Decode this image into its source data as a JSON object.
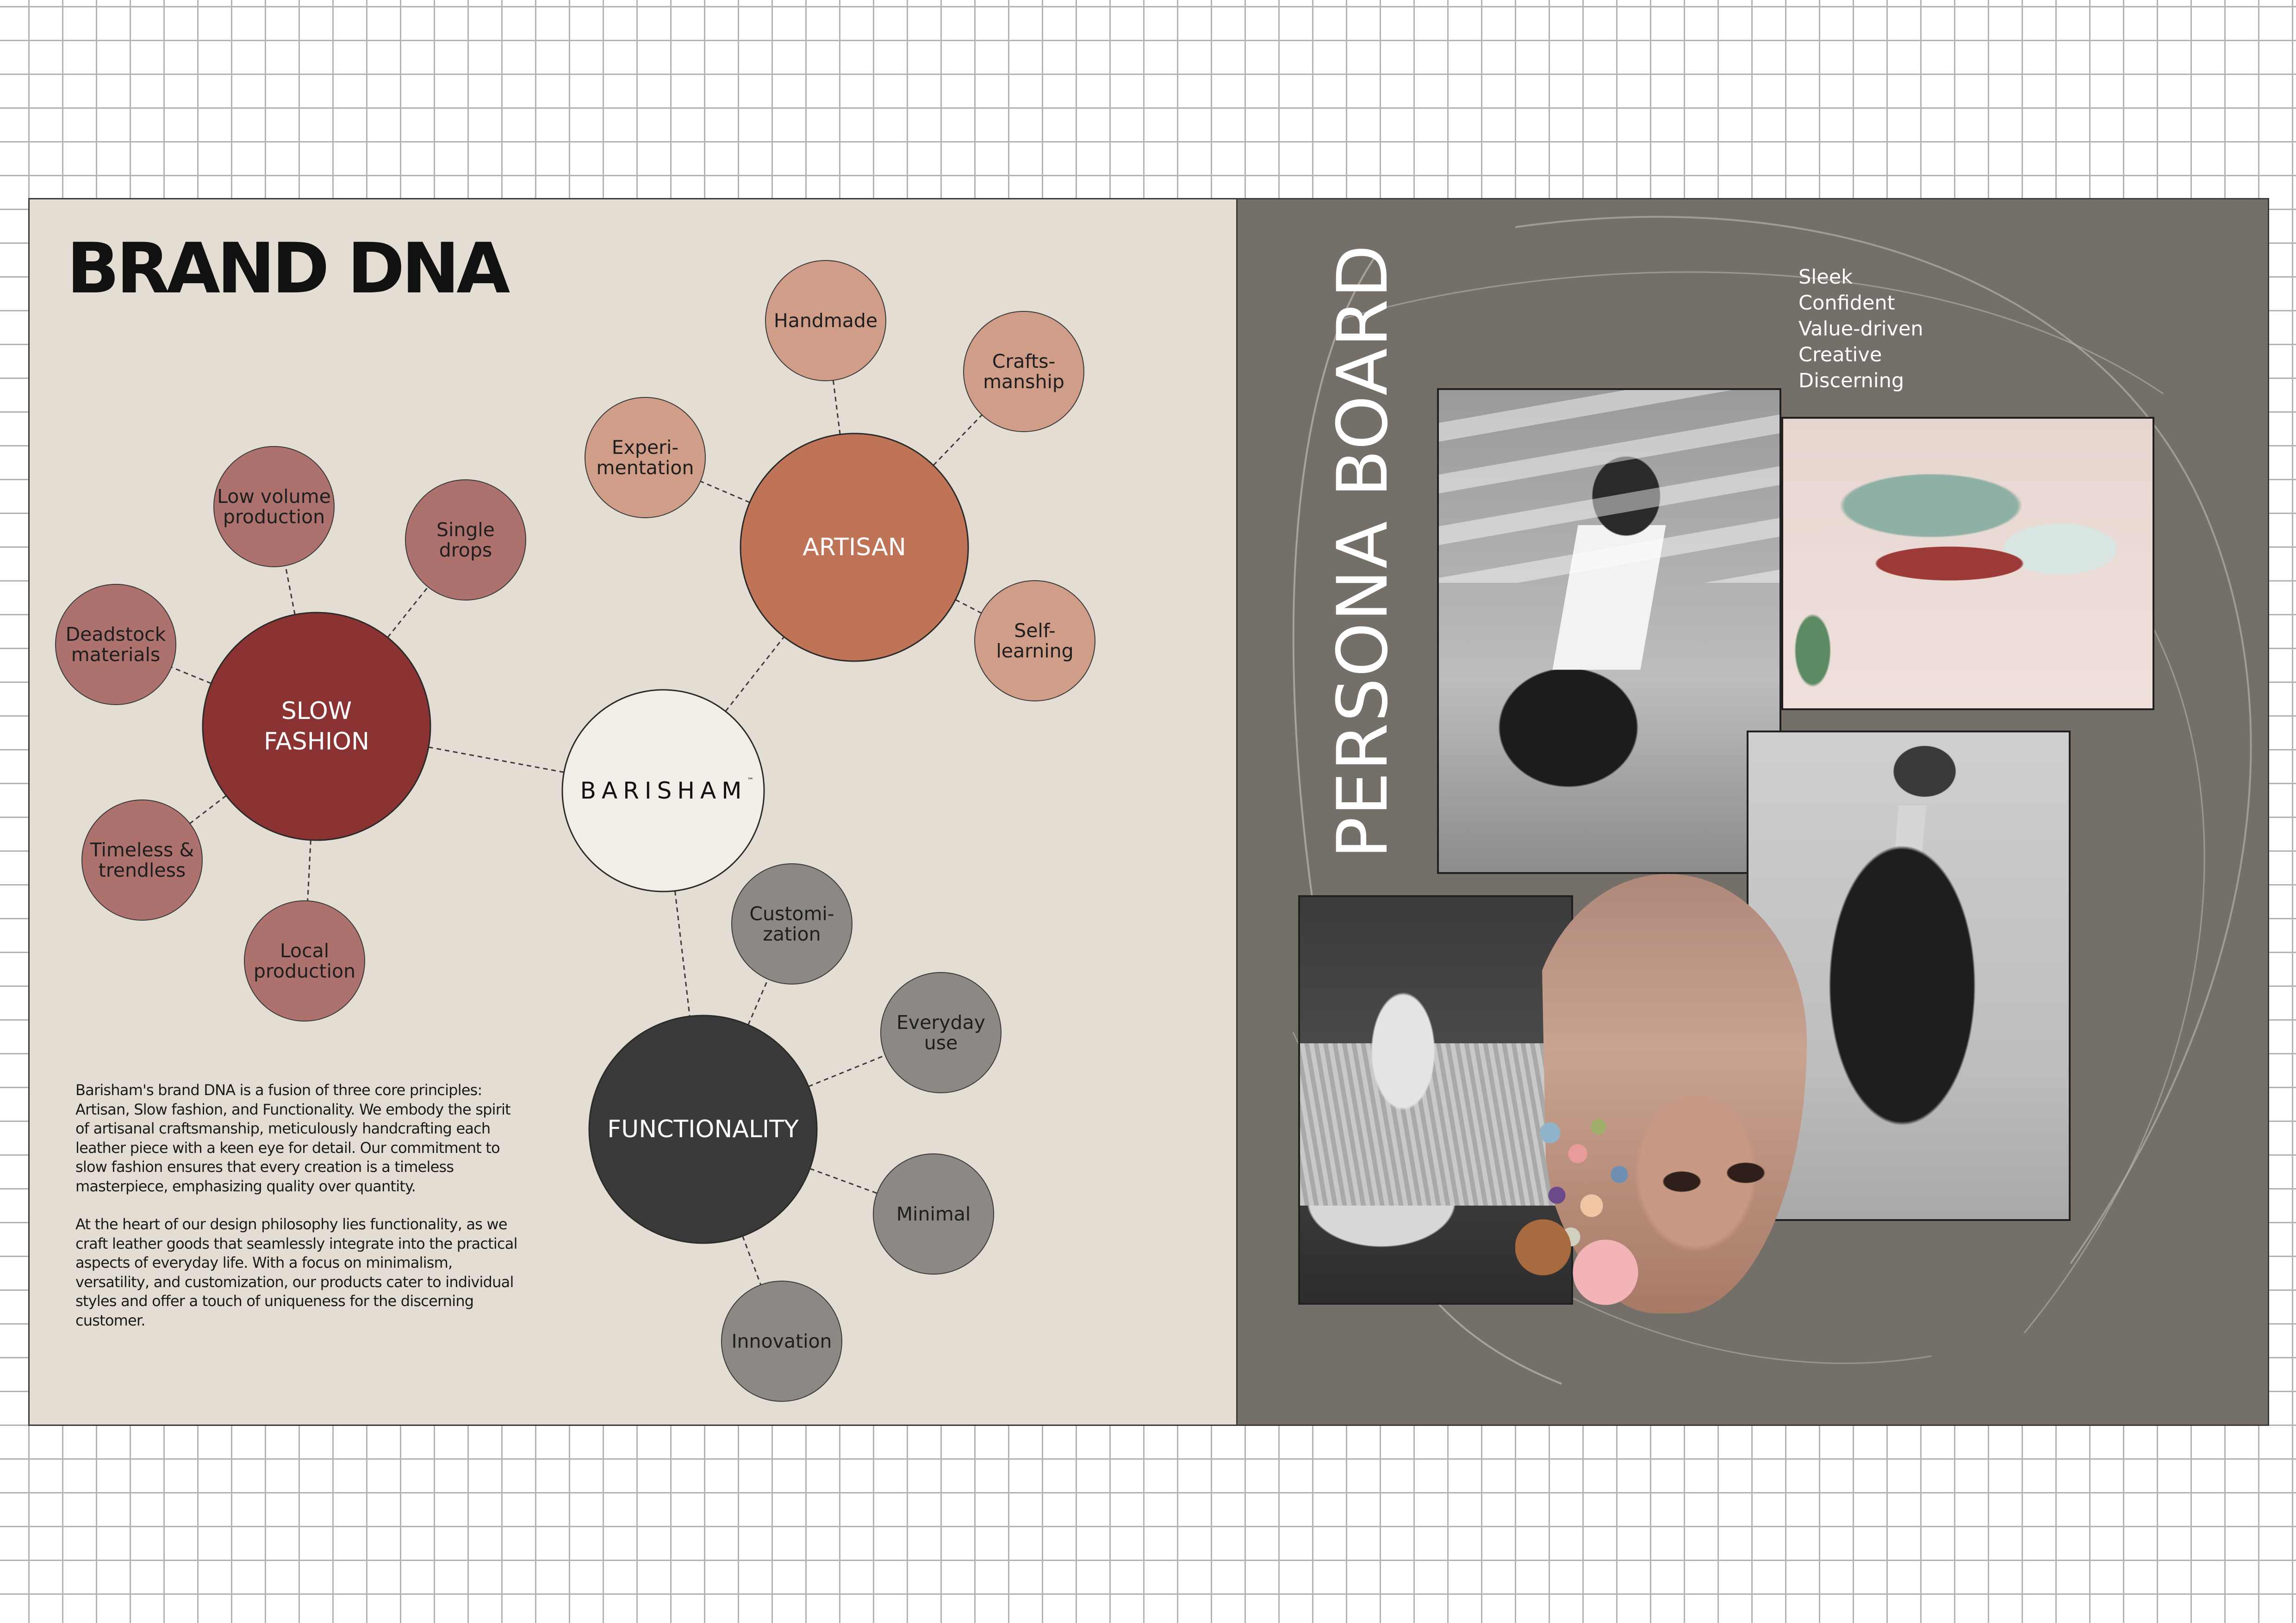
{
  "brand_dna": {
    "title": "BRAND DNA",
    "logo": {
      "text": "BARISHAM",
      "tm": "™"
    },
    "pillars": [
      {
        "id": "slow_fashion",
        "label_lines": [
          "SLOW",
          "FASHION"
        ],
        "color": "#8b3232",
        "satellite_color": "#ad726e",
        "satellites": [
          {
            "lines": [
              "Low volume",
              "production"
            ]
          },
          {
            "lines": [
              "Single",
              "drops"
            ]
          },
          {
            "lines": [
              "Deadstock",
              "materials"
            ]
          },
          {
            "lines": [
              "Timeless &",
              "trendless"
            ]
          },
          {
            "lines": [
              "Local",
              "production"
            ]
          }
        ]
      },
      {
        "id": "artisan",
        "label_lines": [
          "ARTISAN"
        ],
        "color": "#bf7458",
        "satellite_color": "#d09d88",
        "satellites": [
          {
            "lines": [
              "Handmade"
            ]
          },
          {
            "lines": [
              "Crafts-",
              "manship"
            ]
          },
          {
            "lines": [
              "Experi-",
              "mentation"
            ]
          },
          {
            "lines": [
              "Self-",
              "learning"
            ]
          }
        ]
      },
      {
        "id": "functionality",
        "label_lines": [
          "FUNCTIONALITY"
        ],
        "color": "#3a3a3a",
        "satellite_color": "#8c8884",
        "satellites": [
          {
            "lines": [
              "Customi-",
              "zation"
            ]
          },
          {
            "lines": [
              "Everyday",
              "use"
            ]
          },
          {
            "lines": [
              "Minimal"
            ]
          },
          {
            "lines": [
              "Innovation"
            ]
          }
        ]
      }
    ],
    "description": [
      "Barisham's brand DNA is a fusion of three core principles: Artisan, Slow fashion, and Functionality. We embody the spirit of artisanal craftsmanship, meticulously handcrafting each leather piece with a keen eye for detail. Our commitment to slow fashion ensures that every creation is a timeless masterpiece, emphasizing quality over quantity.",
      "At the heart of our design philosophy lies functionality, as we craft leather goods that seamlessly integrate into the practical aspects of everyday life. With a focus on minimalism, versatility, and customization, our products cater to individual styles and offer a touch of uniqueness for the discerning customer."
    ]
  },
  "persona_board": {
    "title": "PERSONA BOARD",
    "traits": [
      "Sleek",
      "Confident",
      "Value-driven",
      "Creative",
      "Discerning"
    ],
    "photos": [
      "street-photo",
      "abstract-photo",
      "coat-photo",
      "hands-photo",
      "face-photo"
    ]
  },
  "colors": {
    "left_background": "#e4ddd3",
    "right_background": "#747069",
    "logo_circle_fill": "#f2ede6",
    "connector": "#3a3a3a"
  }
}
